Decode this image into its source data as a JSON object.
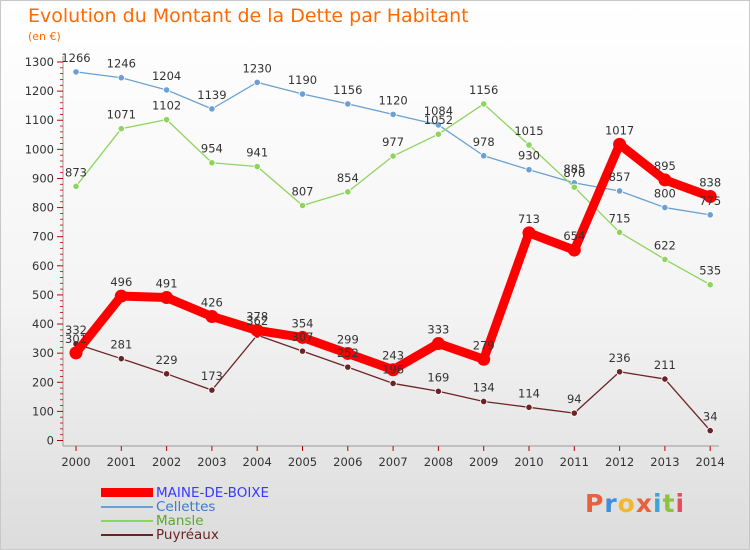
{
  "header": {
    "title": "Evolution du Montant de la Dette par Habitant",
    "unit": "(en €)"
  },
  "logo": {
    "text": "Proxiti",
    "colors": [
      "#e8603c",
      "#3f8ed8",
      "#f2b630",
      "#e8603c",
      "#3aa6d8",
      "#8cc43c",
      "#e84c5c"
    ]
  },
  "chart_data": {
    "type": "line",
    "categories": [
      "2000",
      "2001",
      "2002",
      "2003",
      "2004",
      "2005",
      "2006",
      "2007",
      "2008",
      "2009",
      "2010",
      "2011",
      "2012",
      "2013",
      "2014"
    ],
    "ylim": [
      0,
      1300
    ],
    "yticks": [
      0,
      100,
      200,
      300,
      400,
      500,
      600,
      700,
      800,
      900,
      1000,
      1100,
      1200,
      1300
    ],
    "grid": false,
    "legend_position": "bottom-left",
    "series": [
      {
        "name": "MAINE-DE-BOIXE",
        "color": "#ff0000",
        "emphasis": true,
        "values": [
          301,
          496,
          491,
          426,
          378,
          354,
          299,
          243,
          333,
          279,
          713,
          654,
          1017,
          895,
          838
        ]
      },
      {
        "name": "Cellettes",
        "color": "#6aa0d2",
        "values": [
          1266,
          1246,
          1204,
          1139,
          1230,
          1190,
          1156,
          1120,
          1084,
          978,
          930,
          885,
          857,
          800,
          775
        ]
      },
      {
        "name": "Mansle",
        "color": "#8fd45e",
        "values": [
          873,
          1071,
          1102,
          954,
          941,
          807,
          854,
          977,
          1052,
          1156,
          1015,
          870,
          715,
          622,
          535
        ]
      },
      {
        "name": "Puyréaux",
        "color": "#6b2424",
        "values": [
          332,
          281,
          229,
          173,
          362,
          307,
          252,
          196,
          169,
          134,
          114,
          94,
          236,
          211,
          34
        ]
      }
    ]
  }
}
